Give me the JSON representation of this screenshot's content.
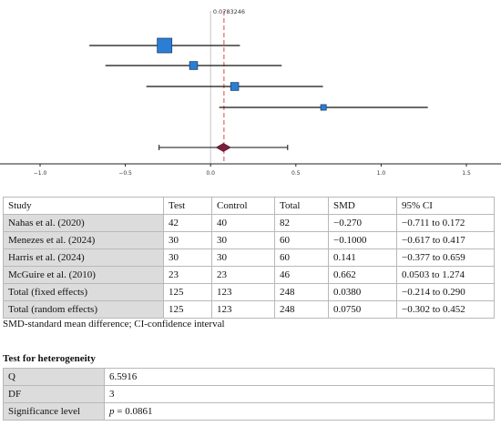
{
  "chart_data": {
    "type": "forest",
    "xlim": [
      -1.0,
      1.5
    ],
    "x_ticks": [
      "−1.0",
      "−0.5",
      "0.0",
      "0.5",
      "1.0",
      "1.5"
    ],
    "x_tick_values": [
      -1.0,
      -0.5,
      0.0,
      0.5,
      1.0,
      1.5
    ],
    "reference_line": 0.0783246,
    "reference_label": "0.0783246",
    "studies": [
      {
        "name": "Nahas et al. (2020)",
        "smd": -0.27,
        "ci": [
          -0.711,
          0.172
        ],
        "weight": 82
      },
      {
        "name": "Menezes et al. (2024)",
        "smd": -0.1,
        "ci": [
          -0.617,
          0.417
        ],
        "weight": 60
      },
      {
        "name": "Harris et al. (2024)",
        "smd": 0.141,
        "ci": [
          -0.377,
          0.659
        ],
        "weight": 60
      },
      {
        "name": "McGuire et al. (2010)",
        "smd": 0.662,
        "ci": [
          0.0503,
          1.274
        ],
        "weight": 46
      }
    ],
    "pooled": {
      "smd": 0.075,
      "ci": [
        -0.302,
        0.452
      ]
    },
    "colors": {
      "box": "#2a7fd4",
      "box_border": "#1e3f6e",
      "diamond": "#7a1f3d",
      "ref_line": "#e06666",
      "zero_line": "#c8c8c8"
    }
  },
  "table": {
    "headers": [
      "Study",
      "Test",
      "Control",
      "Total",
      "SMD",
      "95% CI"
    ],
    "rows": [
      [
        "Nahas et al. (2020)",
        "42",
        "40",
        "82",
        "−0.270",
        "−0.711 to 0.172"
      ],
      [
        "Menezes et al. (2024)",
        "30",
        "30",
        "60",
        "−0.1000",
        "−0.617 to 0.417"
      ],
      [
        "Harris et al. (2024)",
        "30",
        "30",
        "60",
        "0.141",
        "−0.377 to 0.659"
      ],
      [
        "McGuire et al. (2010)",
        "23",
        "23",
        "46",
        "0.662",
        "0.0503 to 1.274"
      ],
      [
        "Total (fixed effects)",
        "125",
        "123",
        "248",
        "0.0380",
        "−0.214 to 0.290"
      ],
      [
        "Total (random effects)",
        "125",
        "123",
        "248",
        "0.0750",
        "−0.302 to 0.452"
      ]
    ]
  },
  "footnote": "SMD-standard mean difference; CI-confidence interval",
  "heterogeneity": {
    "title": "Test for heterogeneity",
    "rows": [
      {
        "label": "Q",
        "value": "6.5916"
      },
      {
        "label": "DF",
        "value": "3"
      },
      {
        "label": "Significance level",
        "prefix": "p",
        "value": " = 0.0861"
      }
    ]
  }
}
